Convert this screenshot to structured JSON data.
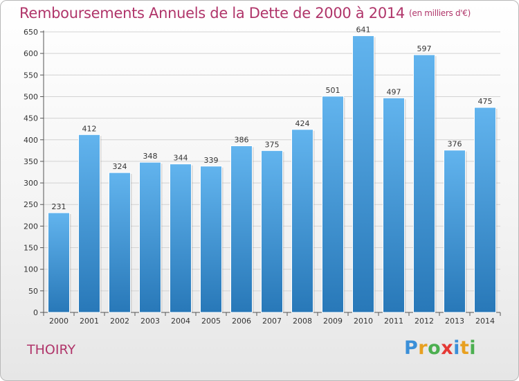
{
  "title": "Remboursements Annuels de la Dette de 2000 à 2014",
  "subtitle": "(en milliers d'€)",
  "commune": "THOIRY",
  "logo": {
    "letters": [
      "P",
      "r",
      "o",
      "x",
      "i",
      "t",
      "i"
    ],
    "colors": [
      "#3a8fd8",
      "#e8a020",
      "#4caf50",
      "#e53935",
      "#3a8fd8",
      "#e8a020",
      "#4caf50"
    ]
  },
  "colors": {
    "bar_top": "#62b4ee",
    "bar_bottom": "#2878b8",
    "title": "#b0356a"
  },
  "chart_data": {
    "type": "bar",
    "title": "Remboursements Annuels de la Dette de 2000 à 2014",
    "subtitle": "(en milliers d'€)",
    "categories": [
      "2000",
      "2001",
      "2002",
      "2003",
      "2004",
      "2005",
      "2006",
      "2007",
      "2008",
      "2009",
      "2010",
      "2011",
      "2012",
      "2013",
      "2014"
    ],
    "values": [
      231,
      412,
      324,
      348,
      344,
      339,
      386,
      375,
      424,
      501,
      641,
      497,
      597,
      376,
      475
    ],
    "ylim": [
      0,
      650
    ],
    "yticks": [
      0,
      50,
      100,
      150,
      200,
      250,
      300,
      350,
      400,
      450,
      500,
      550,
      600,
      650
    ],
    "xlabel": "",
    "ylabel": "",
    "grid": true
  }
}
